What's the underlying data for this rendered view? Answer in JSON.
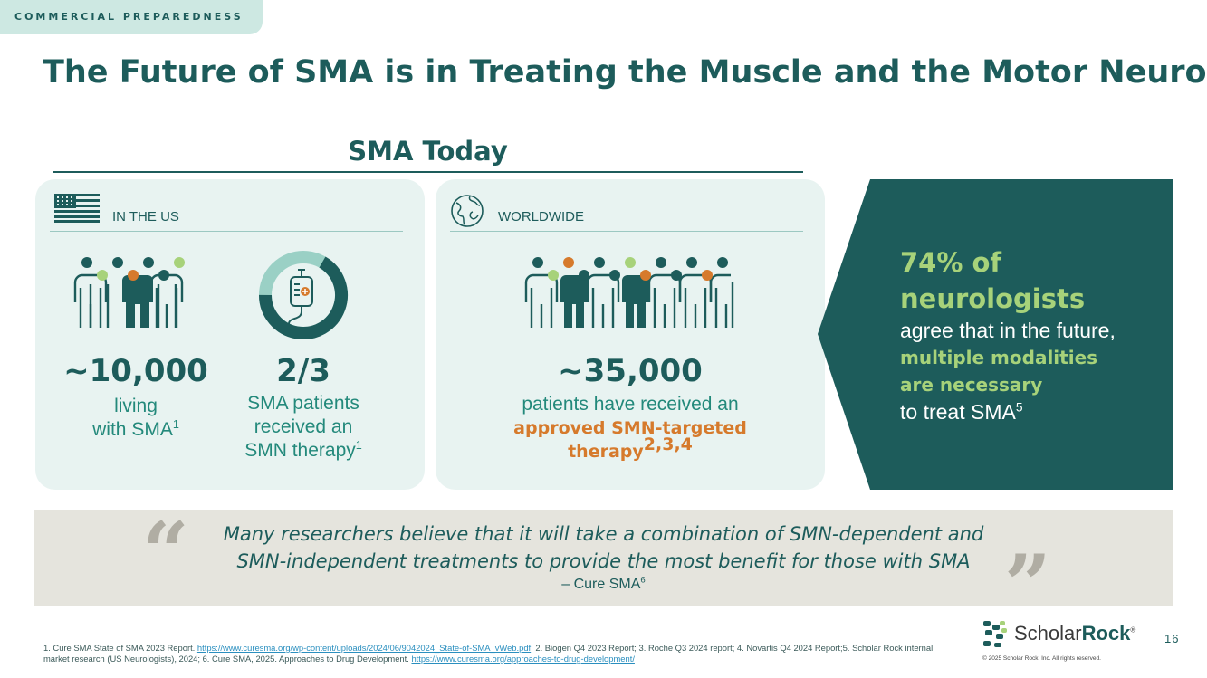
{
  "section_tag": "COMMERCIAL PREPAREDNESS",
  "title": "The Future of SMA is in Treating the Muscle and the Motor Neuron",
  "subtitle": "SMA Today",
  "us_card": {
    "heading": "IN THE US",
    "stat1": {
      "number": "~10,000",
      "line1": "living",
      "line2": "with SMA",
      "ref": "1"
    },
    "stat2": {
      "number": "2/3",
      "line1": "SMA patients",
      "line2": "received an",
      "line3": "SMN therapy",
      "ref": "1",
      "fraction": 0.667
    }
  },
  "ww_card": {
    "heading": "WORLDWIDE",
    "number": "~35,000",
    "line1": "patients have received an",
    "highlight1": "approved SMN-targeted",
    "highlight2": "therapy",
    "refs": "2,3,4"
  },
  "callout": {
    "big1": "74% of",
    "big2": "neurologists",
    "line1": "agree that in the future,",
    "green1": "multiple modalities",
    "green2": "are necessary",
    "line2": "to treat SMA",
    "ref": "5"
  },
  "quote": {
    "line1": "Many researchers believe that it will take a combination of SMN-dependent and",
    "line2": "SMN-independent treatments to provide the most benefit for those with SMA",
    "attribution": "– Cure SMA",
    "ref": "6"
  },
  "footnotes": {
    "f1": "1. Cure SMA State of SMA 2023 Report. ",
    "link1": "https://www.curesma.org/wp-content/uploads/2024/06/9042024_State-of-SMA_vWeb.pdf",
    "f2": "; 2. Biogen Q4 2023 Report; 3. Roche Q3 2024 report; 4. Novartis Q4 2024 Report;5. Scholar Rock internal market research (US Neurologists), 2024; 6. Cure SMA, 2025. Approaches to Drug Development. ",
    "link2": "https://www.curesma.org/approaches-to-drug-development/"
  },
  "logo": {
    "part1": "Scholar",
    "part2": "Rock",
    "mark": "®"
  },
  "copyright": "© 2025 Scholar Rock, Inc. All rights reserved.",
  "page_number": "16",
  "colors": {
    "teal_dark": "#1d5c5b",
    "teal_mid": "#23897b",
    "green": "#a7d27a",
    "orange": "#d67a2c",
    "card_bg": "#e8f3f1"
  }
}
